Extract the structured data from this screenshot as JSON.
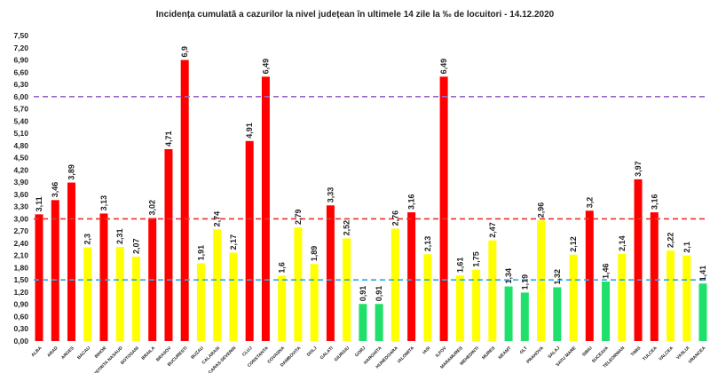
{
  "chart_data": {
    "type": "bar",
    "title": "Incidența cumulată a cazurilor la nivel județean în ultimele 14 zile   la ‰ de locuitori  - 14.12.2020",
    "xlabel": "",
    "ylabel": "",
    "ylim": [
      0,
      7.5
    ],
    "ytick_step": 0.3,
    "yticks": [
      "0,00",
      "0,30",
      "0,60",
      "0,90",
      "1,20",
      "1,50",
      "1,80",
      "2,10",
      "2,40",
      "2,70",
      "3,00",
      "3,30",
      "3,60",
      "3,90",
      "4,20",
      "4,50",
      "4,80",
      "5,10",
      "5,40",
      "5,70",
      "6,00",
      "6,30",
      "6,60",
      "6,90",
      "7,20",
      "7,50"
    ],
    "grid": false,
    "legend": "none",
    "colors": {
      "red": "#ff0000",
      "yellow": "#ffff00",
      "green": "#1fe06a",
      "purple_line": "#9966cc",
      "red_line": "#e8322e",
      "blue_line": "#2fa8e0"
    },
    "threshold_lines": [
      {
        "value": 6.0,
        "color": "purple_line"
      },
      {
        "value": 3.0,
        "color": "red_line"
      },
      {
        "value": 1.5,
        "color": "blue_line"
      }
    ],
    "categories": [
      "ALBA",
      "ARAD",
      "ARGES",
      "BACAU",
      "BIHOR",
      "BISTRITA NASAUD",
      "BOTOSANI",
      "BRAILA",
      "BRASOV",
      "BUCURESTI",
      "BUZAU",
      "CALARASI",
      "CARAS-SEVERIN",
      "CLUJ",
      "CONSTANTA",
      "COVASNA",
      "DAMBOVITA",
      "DOLJ",
      "GALATI",
      "GIURGIU",
      "GORJ",
      "HARGHITA",
      "HUNEDOARA",
      "IALOMITA",
      "IASI",
      "ILFOV",
      "MARAMURES",
      "MEHEDINTI",
      "MURES",
      "NEAMT",
      "OLT",
      "PRAHOVA",
      "SALAJ",
      "SATU MARE",
      "SIBIU",
      "SUCEAVA",
      "TELEORMAN",
      "TIMIS",
      "TULCEA",
      "VALCEA",
      "VASLUI",
      "VRANCEA"
    ],
    "values": [
      3.11,
      3.46,
      3.89,
      2.3,
      3.13,
      2.31,
      2.07,
      3.02,
      4.71,
      6.9,
      1.91,
      2.74,
      2.17,
      4.91,
      6.49,
      1.6,
      2.79,
      1.89,
      3.33,
      2.52,
      0.91,
      0.91,
      2.76,
      3.16,
      2.13,
      6.49,
      1.61,
      1.75,
      2.47,
      1.34,
      1.19,
      2.96,
      1.32,
      2.12,
      3.2,
      1.46,
      2.14,
      3.97,
      3.16,
      2.22,
      2.1,
      1.41
    ],
    "labels": [
      "3,11",
      "3,46",
      "3,89",
      "2,3",
      "3,13",
      "2,31",
      "2,07",
      "3,02",
      "4,71",
      "6,9",
      "1,91",
      "2,74",
      "2,17",
      "4,91",
      "6,49",
      "1,6",
      "2,79",
      "1,89",
      "3,33",
      "2,52",
      "0,91",
      "0,91",
      "2,76",
      "3,16",
      "2,13",
      "6,49",
      "1,61",
      "1,75",
      "2,47",
      "1,34",
      "1,19",
      "2,96",
      "1,32",
      "2,12",
      "3,2",
      "1,46",
      "2,14",
      "3,97",
      "3,16",
      "2,22",
      "2,1",
      "1,41"
    ]
  }
}
